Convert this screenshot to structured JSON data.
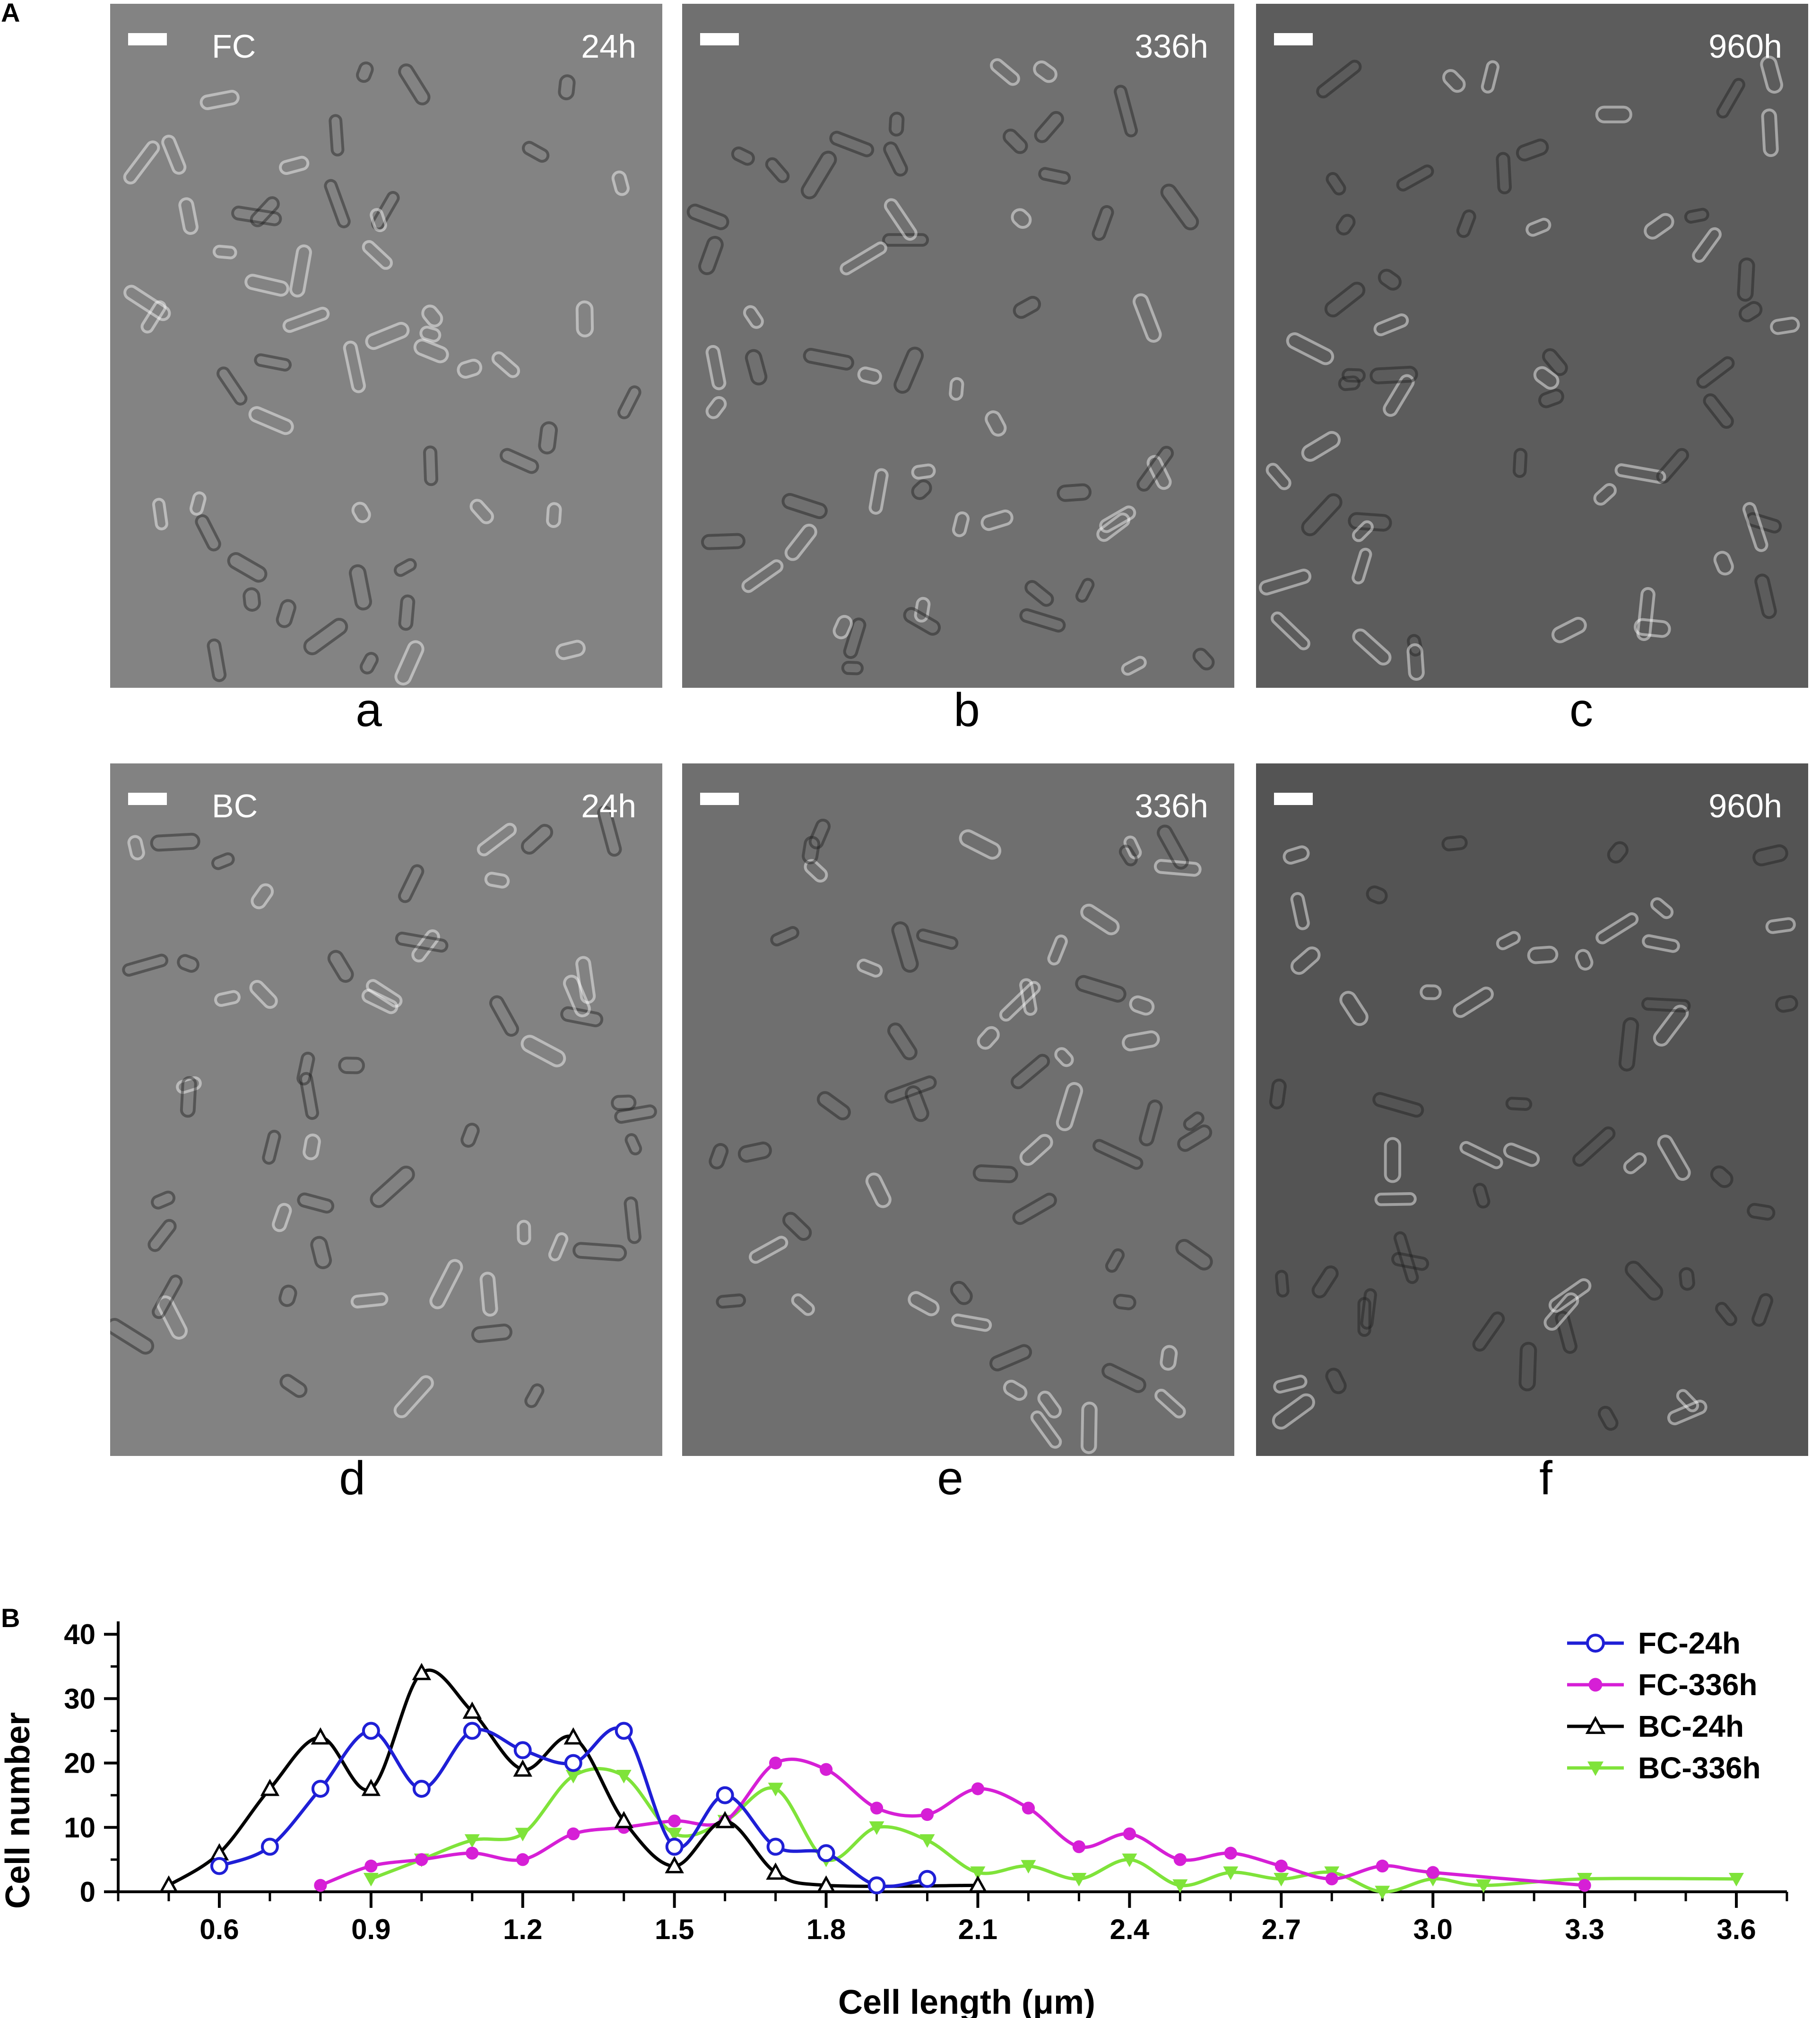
{
  "panel_A_label": "A",
  "panel_B_label": "B",
  "micrographs": [
    {
      "id": "a",
      "group": "FC",
      "time": "24h",
      "sublabel": "a",
      "tone": "#838383"
    },
    {
      "id": "b",
      "group": "",
      "time": "336h",
      "sublabel": "b",
      "tone": "#707070"
    },
    {
      "id": "c",
      "group": "",
      "time": "960h",
      "sublabel": "c",
      "tone": "#5c5c5c"
    },
    {
      "id": "d",
      "group": "BC",
      "time": "24h",
      "sublabel": "d",
      "tone": "#828282"
    },
    {
      "id": "e",
      "group": "",
      "time": "336h",
      "sublabel": "e",
      "tone": "#6f6f6f"
    },
    {
      "id": "f",
      "group": "",
      "time": "960h",
      "sublabel": "f",
      "tone": "#545454"
    }
  ],
  "chart_data": {
    "type": "line",
    "xlabel": "Cell length (μm)",
    "ylabel": "Cell number",
    "xlim": [
      0.4,
      3.7
    ],
    "ylim": [
      0,
      42
    ],
    "xticks": [
      0.6,
      0.9,
      1.2,
      1.5,
      1.8,
      2.1,
      2.4,
      2.7,
      3.0,
      3.3,
      3.6
    ],
    "yticks": [
      0,
      10,
      20,
      30,
      40
    ],
    "grid": false,
    "legend_position": "top-right",
    "series": [
      {
        "name": "FC-24h",
        "color": "#1f1fd6",
        "marker": "open-circle",
        "x": [
          0.6,
          0.7,
          0.8,
          0.9,
          1.0,
          1.1,
          1.2,
          1.3,
          1.4,
          1.5,
          1.6,
          1.7,
          1.8,
          1.9,
          2.0
        ],
        "y": [
          4,
          7,
          16,
          25,
          16,
          25,
          22,
          20,
          25,
          7,
          15,
          7,
          6,
          1,
          2
        ]
      },
      {
        "name": "FC-336h",
        "color": "#d61fd6",
        "marker": "filled-circle",
        "x": [
          0.8,
          0.9,
          1.0,
          1.1,
          1.2,
          1.3,
          1.4,
          1.5,
          1.6,
          1.7,
          1.8,
          1.9,
          2.0,
          2.1,
          2.2,
          2.3,
          2.4,
          2.5,
          2.6,
          2.7,
          2.8,
          2.9,
          3.0,
          3.3
        ],
        "y": [
          1,
          4,
          5,
          6,
          5,
          9,
          10,
          11,
          11,
          20,
          19,
          13,
          12,
          16,
          13,
          7,
          9,
          5,
          6,
          4,
          2,
          4,
          3,
          1
        ]
      },
      {
        "name": "BC-24h",
        "color": "#000000",
        "marker": "open-triangle",
        "x": [
          0.5,
          0.6,
          0.7,
          0.8,
          0.9,
          1.0,
          1.1,
          1.2,
          1.3,
          1.4,
          1.5,
          1.6,
          1.7,
          1.8,
          2.1
        ],
        "y": [
          1,
          6,
          16,
          24,
          16,
          34,
          28,
          19,
          24,
          11,
          4,
          11,
          3,
          1,
          1
        ]
      },
      {
        "name": "BC-336h",
        "color": "#7fe33a",
        "marker": "filled-triangle-down",
        "x": [
          0.9,
          1.0,
          1.1,
          1.2,
          1.3,
          1.4,
          1.5,
          1.6,
          1.7,
          1.8,
          1.9,
          2.0,
          2.1,
          2.2,
          2.3,
          2.4,
          2.5,
          2.6,
          2.7,
          2.8,
          2.9,
          3.0,
          3.1,
          3.3,
          3.6
        ],
        "y": [
          2,
          5,
          8,
          9,
          18,
          18,
          9,
          11,
          16,
          5,
          10,
          8,
          3,
          4,
          2,
          5,
          1,
          3,
          2,
          3,
          0,
          2,
          1,
          2,
          2
        ]
      }
    ]
  }
}
